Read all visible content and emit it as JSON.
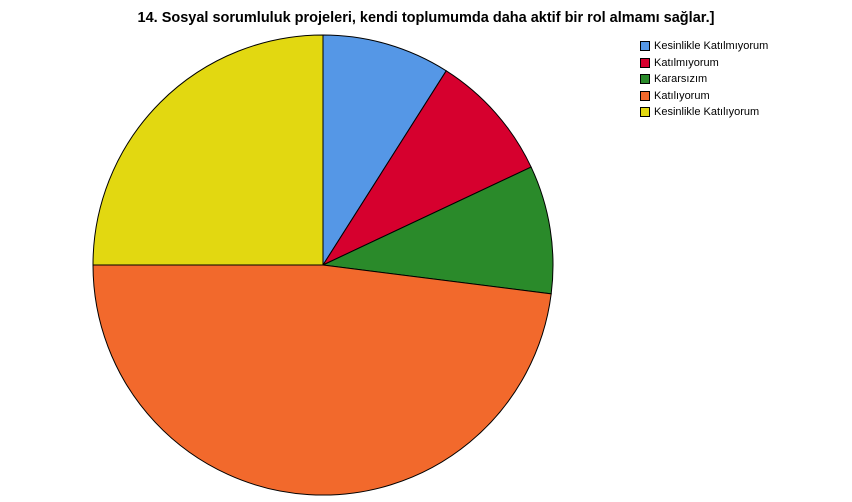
{
  "chart_data": {
    "type": "pie",
    "title": "14. Sosyal sorumluluk projeleri, kendi toplumumda daha aktif bir rol almamı sağlar.]",
    "categories": [
      "Kesinlikle Katılmıyorum",
      "Katılmıyorum",
      "Kararsızım",
      "Katılıyorum",
      "Kesinlikle Katılıyorum"
    ],
    "values": [
      9,
      9,
      9,
      48,
      25
    ],
    "unit": "%",
    "colors": [
      "#5597e6",
      "#d6002e",
      "#2a8a2a",
      "#f2692c",
      "#e2d811"
    ],
    "start_angle": "12 o'clock",
    "direction": "clockwise",
    "legend_position": "top-right"
  }
}
